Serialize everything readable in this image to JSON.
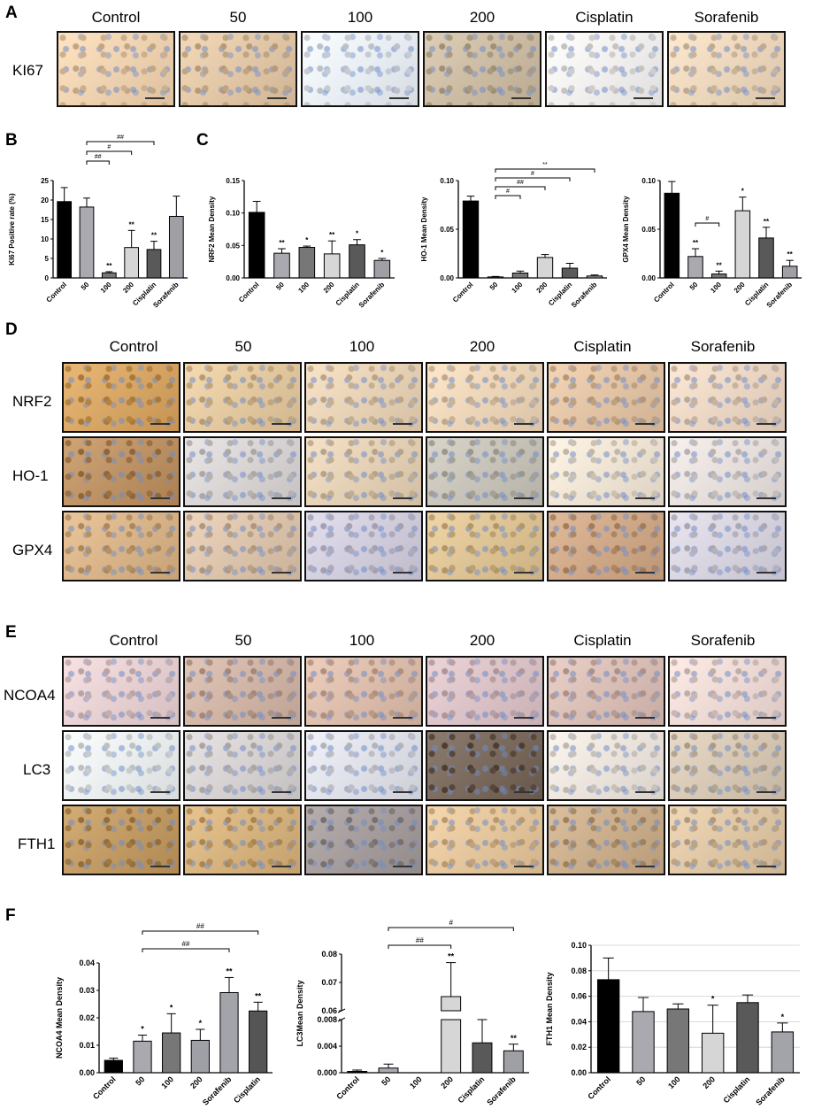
{
  "panels": {
    "A": "A",
    "B": "B",
    "C": "C",
    "D": "D",
    "E": "E",
    "F": "F"
  },
  "groups": [
    "Control",
    "50",
    "100",
    "200",
    "Cisplatin",
    "Sorafenib"
  ],
  "rows": {
    "A": [
      "KI67"
    ],
    "D": [
      "NRF2",
      "HO-1",
      "GPX4"
    ],
    "E": [
      "NCOA4",
      "LC3",
      "FTH1"
    ]
  },
  "tile_colors": {
    "KI67": [
      "#efd2b0",
      "#e2c7a6",
      "#e9eef4",
      "#ccbca4",
      "#f2f0ee",
      "#ecd6bc"
    ],
    "NRF2": [
      "#d8a664",
      "#e3c8a0",
      "#e8d2b6",
      "#ecd5b8",
      "#e2c3a4",
      "#ebd6c4"
    ],
    "HO-1": [
      "#bd9264",
      "#d9d4d4",
      "#e4d0b4",
      "#c7c3b8",
      "#efe4d4",
      "#e6dfdc"
    ],
    "GPX4": [
      "#d9b488",
      "#dcc4ac",
      "#d1cddc",
      "#dec394",
      "#cfa888",
      "#d7d3df"
    ],
    "NCOA4": [
      "#e7d0d2",
      "#d0b4a6",
      "#dcbcaa",
      "#dac2c6",
      "#d9beb6",
      "#eedad4"
    ],
    "LC3": [
      "#ebeeee",
      "#d7d2d2",
      "#dfe0e8",
      "#7a6a5e",
      "#ebe4dc",
      "#d6c8b4"
    ],
    "FTH1": [
      "#c19a64",
      "#d6b27e",
      "#a59c9c",
      "#e4c59c",
      "#caad8a",
      "#dfc6a4"
    ]
  },
  "chart_data": [
    {
      "panel": "B",
      "type": "bar",
      "ylabel": "KI67 Positive rate (%)",
      "categories": [
        "Control",
        "50",
        "100",
        "200",
        "Cisplatin",
        "Sorafenib"
      ],
      "values": [
        19.6,
        18.2,
        1.3,
        7.8,
        7.3,
        15.8
      ],
      "errors": [
        3.6,
        2.3,
        0.3,
        4.4,
        2.1,
        5.2
      ],
      "ylim": [
        0,
        25
      ],
      "yticks": [
        "0",
        "5",
        "10",
        "15",
        "20",
        "25"
      ],
      "stars": [
        "",
        "",
        "**",
        "**",
        "**",
        ""
      ],
      "brackets": [
        {
          "from": 1,
          "to": 2,
          "label": "##"
        },
        {
          "from": 1,
          "to": 3,
          "label": "#"
        },
        {
          "from": 1,
          "to": 4,
          "label": "##"
        }
      ]
    },
    {
      "panel": "C",
      "type": "bar",
      "ylabel": "NRF2 Mean Density",
      "categories": [
        "Control",
        "50",
        "100",
        "200",
        "Cisplatin",
        "Sorafenib"
      ],
      "values": [
        0.101,
        0.038,
        0.047,
        0.037,
        0.051,
        0.027
      ],
      "errors": [
        0.017,
        0.007,
        0.002,
        0.02,
        0.008,
        0.003
      ],
      "ylim": [
        0,
        0.15
      ],
      "yticks": [
        "0.00",
        "0.05",
        "0.10",
        "0.15"
      ],
      "stars": [
        "",
        "**",
        "*",
        "**",
        "*",
        "*"
      ],
      "brackets": []
    },
    {
      "panel": "C",
      "type": "bar",
      "ylabel": "HO-1 Mean Density",
      "categories": [
        "Control",
        "50",
        "100",
        "200",
        "Cisplatin",
        "Sorafenib"
      ],
      "values": [
        0.079,
        0.001,
        0.005,
        0.021,
        0.01,
        0.002
      ],
      "errors": [
        0.005,
        0.0005,
        0.002,
        0.003,
        0.005,
        0.001
      ],
      "ylim": [
        0,
        0.1
      ],
      "yticks": [
        "0.00",
        "0.05",
        "0.10"
      ],
      "stars": [
        "",
        "",
        "",
        "",
        "",
        ""
      ],
      "brackets": [
        {
          "from": 1,
          "to": 2,
          "label": "#"
        },
        {
          "from": 1,
          "to": 3,
          "label": "##"
        },
        {
          "from": 1,
          "to": 4,
          "label": "#"
        },
        {
          "from": 1,
          "to": 5,
          "label": "**"
        }
      ]
    },
    {
      "panel": "C",
      "type": "bar",
      "ylabel": "GPX4 Mean Density",
      "categories": [
        "Control",
        "50",
        "100",
        "200",
        "Cisplatin",
        "Sorafenib"
      ],
      "values": [
        0.087,
        0.022,
        0.004,
        0.069,
        0.041,
        0.012
      ],
      "errors": [
        0.012,
        0.008,
        0.003,
        0.014,
        0.011,
        0.006
      ],
      "ylim": [
        0,
        0.1
      ],
      "yticks": [
        "0.00",
        "0.05",
        "0.10"
      ],
      "stars": [
        "",
        "**",
        "**",
        "*",
        "**",
        "**"
      ],
      "brackets": [
        {
          "from": 1,
          "to": 2,
          "label": "#"
        }
      ]
    },
    {
      "panel": "F",
      "type": "bar",
      "ylabel": "NCOA4 Mean Density",
      "categories": [
        "Control",
        "50",
        "100",
        "200",
        "Sorafenib",
        "Cisplatin"
      ],
      "values": [
        0.0045,
        0.0115,
        0.0145,
        0.0118,
        0.0292,
        0.0225
      ],
      "errors": [
        0.0008,
        0.0022,
        0.007,
        0.004,
        0.0055,
        0.0032
      ],
      "ylim": [
        0,
        0.04
      ],
      "yticks": [
        "0.00",
        "0.01",
        "0.02",
        "0.03",
        "0.04"
      ],
      "stars": [
        "",
        "*",
        "*",
        "*",
        "**",
        "**"
      ],
      "brackets": [
        {
          "from": 1,
          "to": 4,
          "label": "##"
        },
        {
          "from": 1,
          "to": 5,
          "label": "##"
        }
      ]
    },
    {
      "panel": "F",
      "type": "bar",
      "ylabel": "LC3Mean Density",
      "categories": [
        "Control",
        "50",
        "100",
        "200",
        "Cisplatin",
        "Sorafenib"
      ],
      "values": [
        0.0002,
        0.0007,
        0.0,
        0.065,
        0.0045,
        0.0033
      ],
      "errors": [
        0.0002,
        0.0006,
        0.0,
        0.012,
        0.0045,
        0.001
      ],
      "axis_break": {
        "lower": [
          0,
          0.008
        ],
        "upper": [
          0.06,
          0.08
        ]
      },
      "yticks_lower": [
        "0.000",
        "0.004",
        "0.008"
      ],
      "yticks_upper": [
        "0.06",
        "0.07",
        "0.08"
      ],
      "stars": [
        "",
        "",
        "",
        "**",
        "",
        "**"
      ],
      "brackets": [
        {
          "from": 1,
          "to": 3,
          "label": "##"
        },
        {
          "from": 1,
          "to": 5,
          "label": "#"
        }
      ]
    },
    {
      "panel": "F",
      "type": "bar",
      "ylabel": "FTH1 Mean Density",
      "categories": [
        "Control",
        "50",
        "100",
        "200",
        "Cisplatin",
        "Sorafenib"
      ],
      "values": [
        0.073,
        0.048,
        0.05,
        0.031,
        0.055,
        0.032
      ],
      "errors": [
        0.017,
        0.011,
        0.004,
        0.022,
        0.006,
        0.007
      ],
      "ylim": [
        0,
        0.1
      ],
      "yticks": [
        "0.00",
        "0.02",
        "0.04",
        "0.06",
        "0.08",
        "0.10"
      ],
      "stars": [
        "",
        "",
        "",
        "*",
        "",
        "*"
      ],
      "grid": true,
      "brackets": []
    }
  ]
}
